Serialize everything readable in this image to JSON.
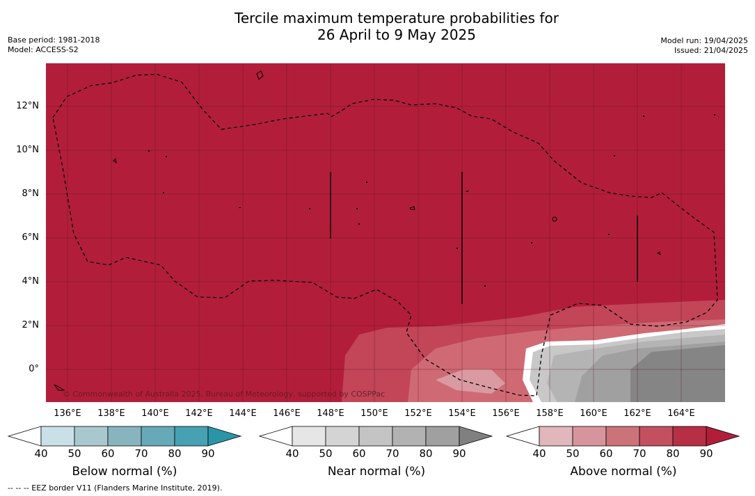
{
  "title_line1": "Tercile maximum temperature probabilities for",
  "title_line2": "26 April to 9 May 2025",
  "base_period": "Base period: 1981-2018",
  "model": "Model: ACCESS-S2",
  "model_run": "Model run: 19/04/2025",
  "issued": "Issued: 21/04/2025",
  "map": {
    "lat_labels": [
      "12°N",
      "10°N",
      "8°N",
      "6°N",
      "4°N",
      "2°N",
      "0°"
    ],
    "lon_labels": [
      "136°E",
      "138°E",
      "140°E",
      "142°E",
      "144°E",
      "146°E",
      "148°E",
      "150°E",
      "152°E",
      "154°E",
      "156°E",
      "158°E",
      "160°E",
      "162°E",
      "164°E"
    ],
    "lon_range": [
      135,
      166
    ],
    "lat_range": [
      -1.5,
      14
    ],
    "copyright": "© Commonwealth of Australia 2025, Bureau of Meteorology, supported by COSPPac",
    "background_category": "above-normal-90",
    "colors": {
      "above_90": "#B21E3A",
      "above_80": "#C24558",
      "above_70": "#CF6A74",
      "near_70": "#B4B4B4",
      "near_80": "#A0A0A0",
      "near_90": "#808080",
      "near_60": "#C8C8C8"
    }
  },
  "colorbars": [
    {
      "title": "Below normal (%)",
      "ticks": [
        "40",
        "50",
        "60",
        "70",
        "80",
        "90"
      ],
      "colors": [
        "#ffffff",
        "#C9E1E6",
        "#A8C8CE",
        "#88B4BE",
        "#67A9B8",
        "#46A1B2",
        "#2B95A8"
      ]
    },
    {
      "title": "Near normal (%)",
      "ticks": [
        "40",
        "50",
        "60",
        "70",
        "80",
        "90"
      ],
      "colors": [
        "#ffffff",
        "#E6E6E6",
        "#D4D4D4",
        "#C4C4C4",
        "#B2B2B2",
        "#A0A0A0",
        "#808080"
      ]
    },
    {
      "title": "Above normal (%)",
      "ticks": [
        "40",
        "50",
        "60",
        "70",
        "80",
        "90"
      ],
      "colors": [
        "#ffffff",
        "#E1B6BC",
        "#D6959C",
        "#CC7379",
        "#C2505E",
        "#B72F45",
        "#B21E3A"
      ]
    }
  ],
  "footer": "--  --  -- EEZ border V11 (Flanders Marine Institute, 2019)."
}
